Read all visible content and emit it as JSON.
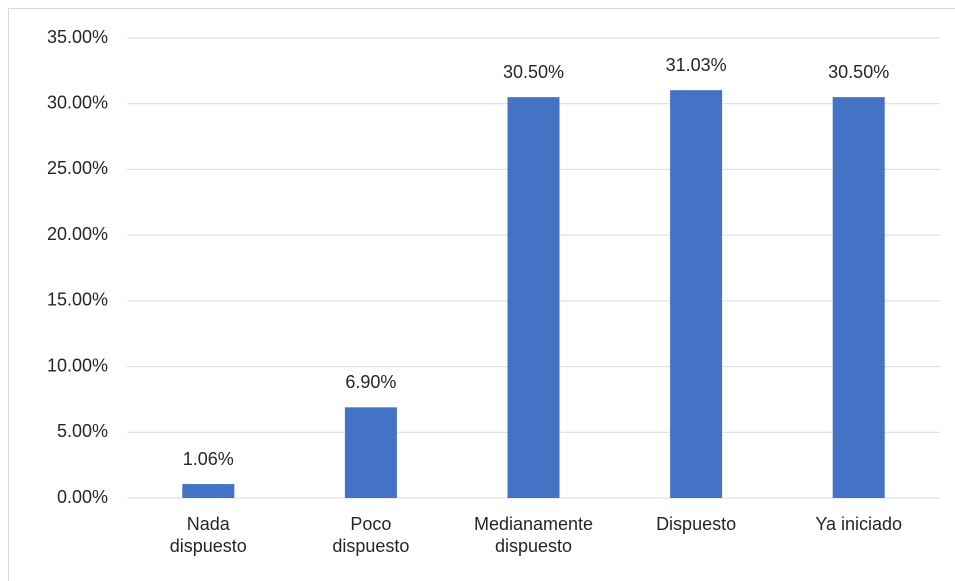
{
  "chart_data": {
    "type": "bar",
    "categories": [
      "Nada\ndispuesto",
      "Poco\ndispuesto",
      "Medianamente\ndispuesto",
      "Dispuesto",
      "Ya iniciado"
    ],
    "values": [
      1.06,
      6.9,
      30.5,
      31.03,
      30.5
    ],
    "value_labels": [
      "1.06%",
      "6.90%",
      "30.50%",
      "31.03%",
      "30.50%"
    ],
    "color": "#4472c4",
    "ylim": [
      0,
      35
    ],
    "yticks": [
      {
        "value": 0,
        "label": "0.00%"
      },
      {
        "value": 5,
        "label": "5.00%"
      },
      {
        "value": 10,
        "label": "10.00%"
      },
      {
        "value": 15,
        "label": "15.00%"
      },
      {
        "value": 20,
        "label": "20.00%"
      },
      {
        "value": 25,
        "label": "25.00%"
      },
      {
        "value": 30,
        "label": "30.00%"
      },
      {
        "value": 35,
        "label": "35.00%"
      }
    ],
    "grid": true
  }
}
